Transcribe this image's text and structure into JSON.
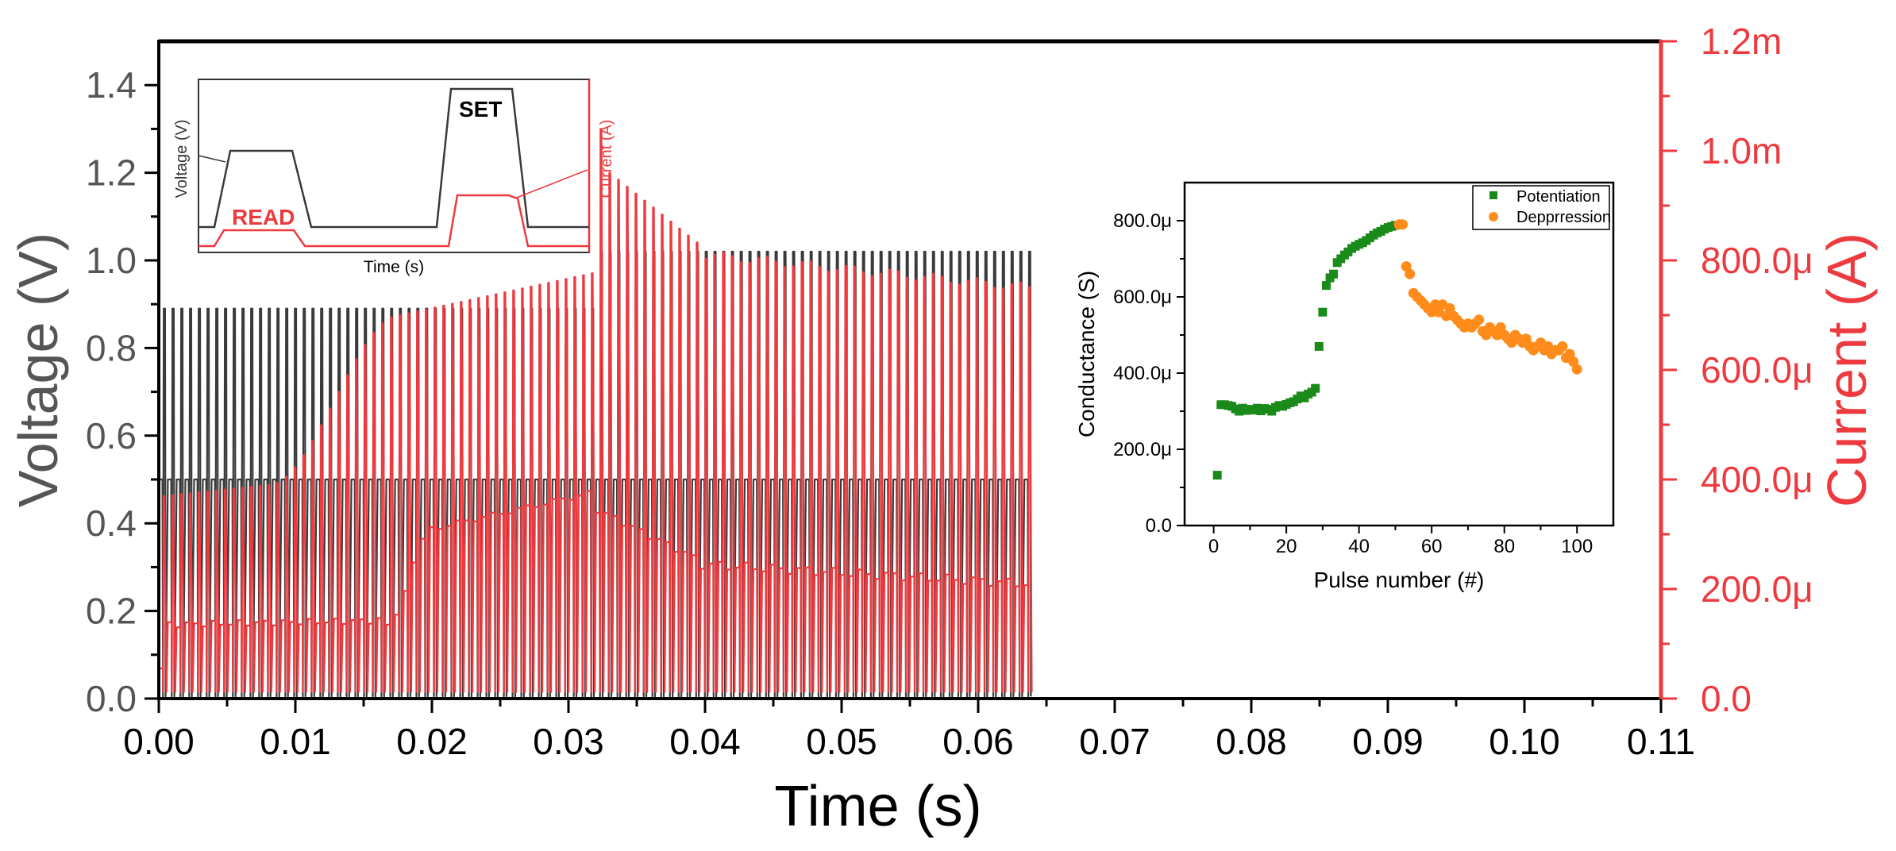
{
  "chart_data": [
    {
      "type": "line",
      "title": "",
      "xlabel": "Time (s)",
      "ylabel": "Voltage (V)",
      "y2label": "Current (A)",
      "xlim": [
        0,
        0.11
      ],
      "ylim": [
        0,
        1.5
      ],
      "y2lim": [
        0,
        0.0012
      ],
      "x_ticks": [
        "0.00",
        "0.01",
        "0.02",
        "0.03",
        "0.04",
        "0.05",
        "0.06",
        "0.07",
        "0.08",
        "0.09",
        "0.10",
        "0.11"
      ],
      "y_ticks": [
        "0.0",
        "0.2",
        "0.4",
        "0.6",
        "0.8",
        "1.0",
        "1.2",
        "1.4"
      ],
      "y2_ticks": [
        "0.0",
        "200.0μ",
        "400.0μ",
        "600.0μ",
        "800.0μ",
        "1.0m",
        "1.2m"
      ],
      "pulse_count": 100,
      "t_end": 0.064,
      "series": [
        {
          "name": "Voltage",
          "color": "#3a3a3a",
          "read_level": 0.5,
          "set_level_1_50": 0.89,
          "set_level_51_100": 1.02
        },
        {
          "name": "Current",
          "color": "#ee3a3f",
          "read_current_pulse_1": 5.5e-05,
          "read_current_low": 0.000135,
          "read_current_plateau": 0.00031,
          "read_current_peak": 0.000378,
          "read_current_end": 0.00021,
          "set_current_start": 0.00037,
          "set_current_plateau": 0.00075,
          "set_current_peak": 0.00104,
          "set_current_end": 0.00075
        }
      ]
    },
    {
      "type": "line",
      "title": "",
      "xlabel": "Time (s)",
      "ylabel": "Voltage (V)",
      "y2label": "Current (A)",
      "annotations": [
        "READ",
        "SET"
      ],
      "series": [
        {
          "name": "Voltage",
          "color": "#3a3a3a"
        },
        {
          "name": "Current",
          "color": "#ee3a3f"
        }
      ]
    },
    {
      "type": "scatter",
      "title": "",
      "xlabel": "Pulse number (#)",
      "ylabel": "Conductance (S)",
      "xlim": [
        -8,
        110
      ],
      "ylim": [
        0,
        0.0009
      ],
      "x_ticks": [
        "0",
        "20",
        "40",
        "60",
        "80",
        "100"
      ],
      "y_ticks": [
        "0.0",
        "200.0μ",
        "400.0μ",
        "600.0μ",
        "800.0μ"
      ],
      "legend_position": "top-right",
      "series": [
        {
          "name": "Potentiation",
          "color": "#1a8a1a",
          "marker": "square",
          "x": [
            1,
            2,
            3,
            4,
            5,
            6,
            7,
            8,
            9,
            10,
            11,
            12,
            13,
            14,
            15,
            16,
            17,
            18,
            19,
            20,
            21,
            22,
            23,
            24,
            25,
            26,
            27,
            28,
            29,
            30,
            31,
            32,
            33,
            34,
            35,
            36,
            37,
            38,
            39,
            40,
            41,
            42,
            43,
            44,
            45,
            46,
            47,
            48,
            49,
            50
          ],
          "values": [
            0.000132,
            0.000317,
            0.000317,
            0.000315,
            0.000313,
            0.000306,
            0.0003,
            0.000308,
            0.000302,
            0.000305,
            0.000303,
            0.000308,
            0.000301,
            0.000307,
            0.000305,
            0.0003,
            0.00031,
            0.000315,
            0.000313,
            0.000318,
            0.000322,
            0.000325,
            0.000332,
            0.00034,
            0.000335,
            0.000345,
            0.00035,
            0.00036,
            0.00047,
            0.00056,
            0.00063,
            0.00065,
            0.00066,
            0.00069,
            0.0007,
            0.00071,
            0.000718,
            0.000727,
            0.000733,
            0.000738,
            0.000742,
            0.000748,
            0.000755,
            0.000762,
            0.000768,
            0.000772,
            0.000778,
            0.000782,
            0.000785,
            0.000788
          ]
        },
        {
          "name": "Depprression",
          "color": "#ff8c1a",
          "marker": "circle",
          "x": [
            51,
            52,
            53,
            54,
            55,
            56,
            57,
            58,
            59,
            60,
            61,
            62,
            63,
            64,
            65,
            66,
            67,
            68,
            69,
            70,
            71,
            72,
            73,
            74,
            75,
            76,
            77,
            78,
            79,
            80,
            81,
            82,
            83,
            84,
            85,
            86,
            87,
            88,
            89,
            90,
            91,
            92,
            93,
            94,
            95,
            96,
            97,
            98,
            99,
            100
          ],
          "values": [
            0.00079,
            0.00079,
            0.00068,
            0.00066,
            0.00061,
            0.0006,
            0.00059,
            0.00058,
            0.00057,
            0.00056,
            0.00058,
            0.00056,
            0.00058,
            0.00055,
            0.00057,
            0.00055,
            0.00054,
            0.00053,
            0.00052,
            0.00053,
            0.00052,
            0.00053,
            0.00054,
            0.00051,
            0.0005,
            0.00052,
            0.00051,
            0.0005,
            0.00052,
            0.0005,
            0.00049,
            0.00048,
            0.0005,
            0.00049,
            0.00048,
            0.00049,
            0.00047,
            0.00046,
            0.00047,
            0.00048,
            0.00046,
            0.00047,
            0.00045,
            0.00046,
            0.00046,
            0.00047,
            0.00044,
            0.00045,
            0.00043,
            0.00041
          ]
        }
      ]
    }
  ]
}
